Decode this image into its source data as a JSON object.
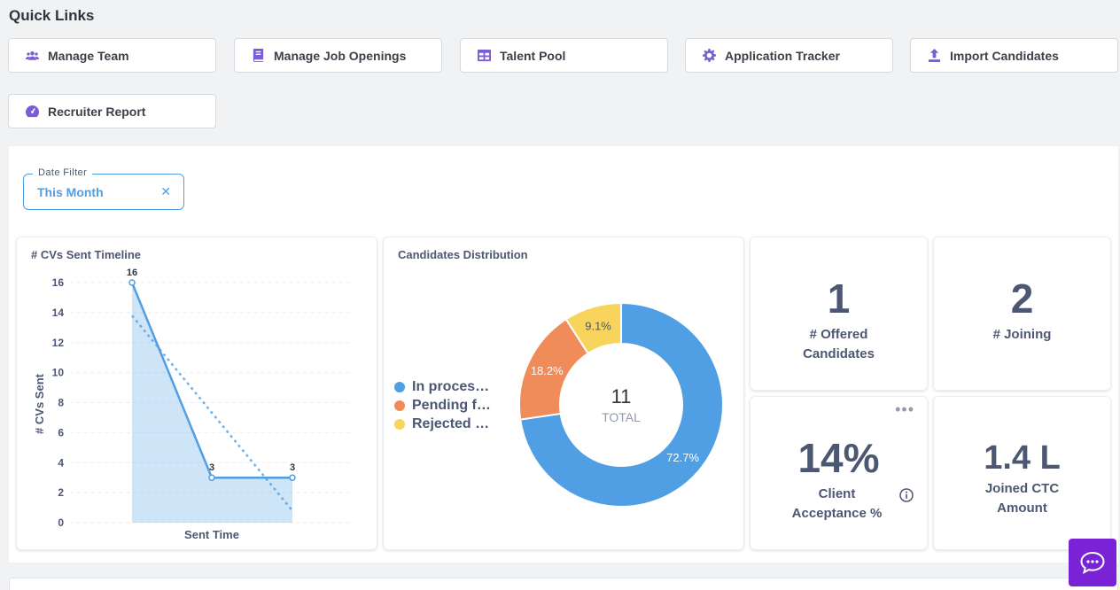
{
  "quick_links": {
    "title": "Quick Links",
    "buttons": [
      {
        "label": "Manage Team",
        "icon": "users-icon"
      },
      {
        "label": "Manage Job Openings",
        "icon": "book-icon"
      },
      {
        "label": "Talent Pool",
        "icon": "table-icon"
      },
      {
        "label": "Application Tracker",
        "icon": "gear-icon"
      },
      {
        "label": "Import Candidates",
        "icon": "upload-icon"
      },
      {
        "label": "Recruiter Report",
        "icon": "gauge-icon"
      }
    ]
  },
  "date_filter": {
    "label": "Date Filter",
    "value": "This Month"
  },
  "cards": {
    "offered": {
      "value": "1",
      "label_line1": "# Offered",
      "label_line2": "Candidates"
    },
    "joining": {
      "value": "2",
      "label": "# Joining"
    },
    "acceptance": {
      "value": "14%",
      "label_line1": "Client",
      "label_line2": "Acceptance %"
    },
    "ctc": {
      "value": "1.4 L",
      "label_line1": "Joined CTC",
      "label_line2": "Amount"
    }
  },
  "colors": {
    "accent": "#509ee3",
    "purple": "#7b5cd6",
    "chat": "#7a22d6",
    "in_process": "#509ee3",
    "pending": "#ef8c5a",
    "rejected": "#f9d45c"
  },
  "chart_data": [
    {
      "type": "line",
      "title": "# CVs Sent Timeline",
      "xlabel": "Sent Time",
      "ylabel": "# CVs Sent",
      "ylim": [
        0,
        16
      ],
      "yticks": [
        0,
        2,
        4,
        6,
        8,
        10,
        12,
        14,
        16
      ],
      "series": [
        {
          "values": [
            16,
            3,
            3
          ],
          "data_labels": [
            "16",
            "3",
            "3"
          ]
        }
      ],
      "trendline": [
        13.8,
        7.3,
        0.8
      ],
      "grid": true
    },
    {
      "type": "pie",
      "title": "Candidates Distribution",
      "center_value": "11",
      "center_label": "TOTAL",
      "slices": [
        {
          "name": "In proces…",
          "value": 72.7,
          "label": "72.7%"
        },
        {
          "name": "Pending f…",
          "value": 18.2,
          "label": "18.2%"
        },
        {
          "name": "Rejected …",
          "value": 9.1,
          "label": "9.1%"
        }
      ],
      "legend": "left"
    }
  ]
}
